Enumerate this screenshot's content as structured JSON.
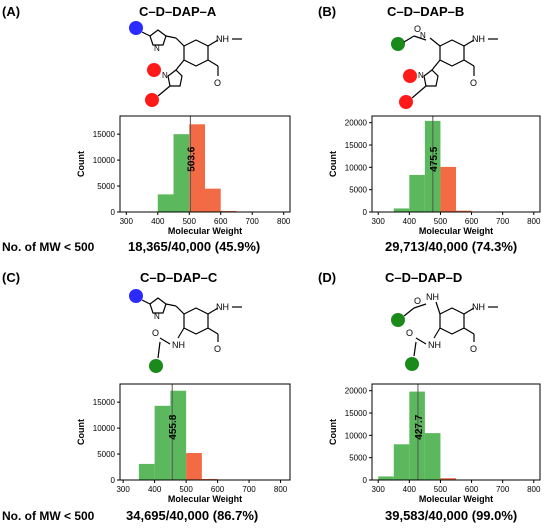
{
  "panels": [
    {
      "id": "A",
      "label": "(A)",
      "title": "C–D–DAP–A",
      "count_text": "18,365/40,000 (45.9%)"
    },
    {
      "id": "B",
      "label": "(B)",
      "title": "C–D–DAP–B",
      "count_text": "29,713/40,000 (74.3%)"
    },
    {
      "id": "C",
      "label": "(C)",
      "title": "C–D–DAP–C",
      "count_text": "34,695/40,000 (86.7%)"
    },
    {
      "id": "D",
      "label": "(D)",
      "title": "C–D–DAP–D",
      "count_text": "39,583/40,000 (99.0%)"
    }
  ],
  "row_label": "No. of MW < 500",
  "structure_labels": {
    "nh": "N",
    "nh_amide": "NH",
    "n": "N",
    "o": "O",
    "h": "H"
  },
  "colors": {
    "green": "#5cb85c",
    "orange": "#f26b45",
    "blue": "#2b2bff",
    "red": "#ff1a1a",
    "dot_green": "#1a8a1a"
  },
  "chart_data": [
    {
      "type": "bar",
      "panel": "A",
      "xlabel": "Molecular Weight",
      "ylabel": "Count",
      "xlim": [
        280,
        820
      ],
      "ylim": [
        0,
        18500
      ],
      "xticks": [
        300,
        400,
        500,
        600,
        700,
        800
      ],
      "yticks": [
        0,
        5000,
        10000,
        15000
      ],
      "ytick_labels": [
        "0",
        "5000",
        "10000",
        "15000"
      ],
      "bin_width": 50,
      "bins": [
        {
          "x": 400,
          "value": 3400,
          "color": "green"
        },
        {
          "x": 450,
          "value": 15000,
          "color": "green"
        },
        {
          "x": 500,
          "value": 16900,
          "color": "orange"
        },
        {
          "x": 550,
          "value": 4500,
          "color": "orange"
        },
        {
          "x": 600,
          "value": 200,
          "color": "orange"
        }
      ],
      "marker": 503.6,
      "marker_label": "503.6"
    },
    {
      "type": "bar",
      "panel": "B",
      "xlabel": "Molecular Weight",
      "ylabel": "Count",
      "xlim": [
        280,
        820
      ],
      "ylim": [
        0,
        21500
      ],
      "xticks": [
        300,
        400,
        500,
        600,
        700,
        800
      ],
      "yticks": [
        0,
        5000,
        10000,
        15000,
        20000
      ],
      "ytick_labels": [
        "0",
        "5000",
        "10000",
        "15000",
        "20000"
      ],
      "bin_width": 50,
      "bins": [
        {
          "x": 350,
          "value": 800,
          "color": "green"
        },
        {
          "x": 400,
          "value": 8300,
          "color": "green"
        },
        {
          "x": 450,
          "value": 20400,
          "color": "green"
        },
        {
          "x": 500,
          "value": 10100,
          "color": "orange"
        },
        {
          "x": 550,
          "value": 300,
          "color": "orange"
        }
      ],
      "marker": 475.5,
      "marker_label": "475.5"
    },
    {
      "type": "bar",
      "panel": "C",
      "xlabel": "Molecular Weight",
      "ylabel": "Count",
      "xlim": [
        290,
        830
      ],
      "ylim": [
        0,
        18500
      ],
      "xticks": [
        300,
        400,
        500,
        600,
        700,
        800
      ],
      "yticks": [
        0,
        5000,
        10000,
        15000
      ],
      "ytick_labels": [
        "0",
        "5000",
        "10000",
        "15000"
      ],
      "bin_width": 50,
      "bins": [
        {
          "x": 350,
          "value": 3100,
          "color": "green"
        },
        {
          "x": 400,
          "value": 14300,
          "color": "green"
        },
        {
          "x": 450,
          "value": 17200,
          "color": "green"
        },
        {
          "x": 500,
          "value": 5200,
          "color": "orange"
        },
        {
          "x": 550,
          "value": 200,
          "color": "orange"
        }
      ],
      "marker": 455.8,
      "marker_label": "455.8"
    },
    {
      "type": "bar",
      "panel": "D",
      "xlabel": "Molecular Weight",
      "ylabel": "Count",
      "xlim": [
        280,
        820
      ],
      "ylim": [
        0,
        21500
      ],
      "xticks": [
        300,
        400,
        500,
        600,
        700,
        800
      ],
      "yticks": [
        0,
        5000,
        10000,
        15000,
        20000
      ],
      "ytick_labels": [
        "0",
        "5000",
        "10000",
        "15000",
        "20000"
      ],
      "bin_width": 50,
      "bins": [
        {
          "x": 300,
          "value": 800,
          "color": "green"
        },
        {
          "x": 350,
          "value": 8000,
          "color": "green"
        },
        {
          "x": 400,
          "value": 19800,
          "color": "green"
        },
        {
          "x": 450,
          "value": 10500,
          "color": "green"
        },
        {
          "x": 500,
          "value": 400,
          "color": "orange"
        }
      ],
      "marker": 427.7,
      "marker_label": "427.7"
    }
  ]
}
